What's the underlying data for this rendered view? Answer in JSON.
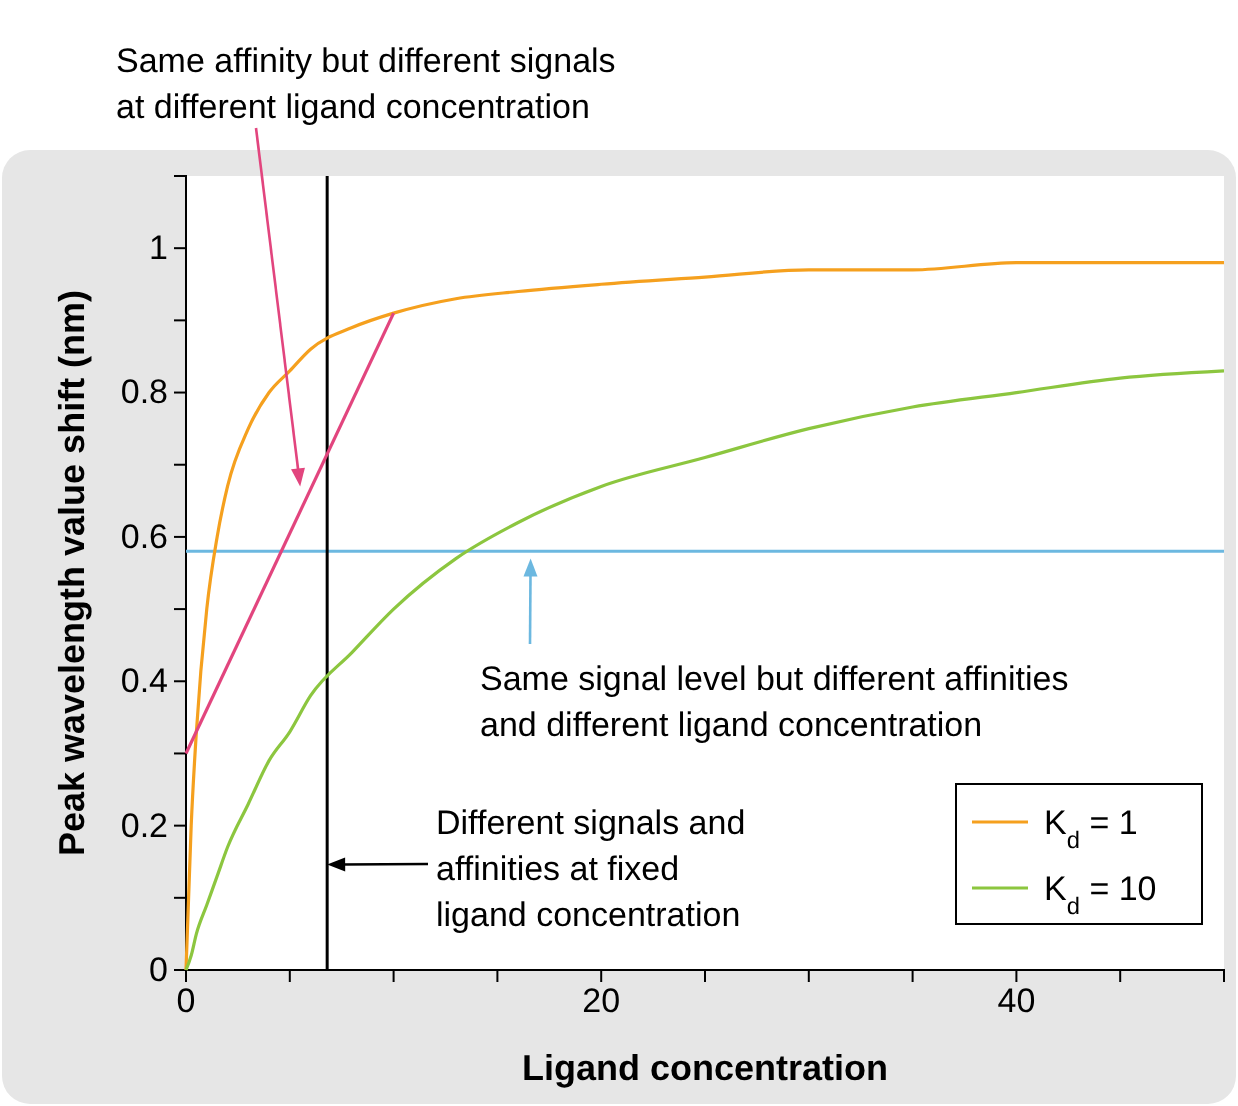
{
  "chart_data": {
    "type": "line",
    "xlabel": "Ligand concentration",
    "ylabel": "Peak wavelength value shift (nm)",
    "x": [
      0,
      0.25,
      0.5,
      1,
      1.5,
      2,
      3,
      4,
      5,
      6,
      8,
      10,
      13,
      16,
      20,
      25,
      30,
      35,
      40,
      45,
      50
    ],
    "series": [
      {
        "name": "K$_{d}$ = 1",
        "color": "#f5a01e",
        "values": [
          0,
          0.2,
          0.33,
          0.5,
          0.6,
          0.67,
          0.75,
          0.8,
          0.83,
          0.86,
          0.89,
          0.91,
          0.93,
          0.94,
          0.95,
          0.96,
          0.97,
          0.97,
          0.98,
          0.98,
          0.98
        ]
      },
      {
        "name": "K$_{d}$ = 10",
        "color": "#8cc63f",
        "values": [
          0,
          0.02,
          0.05,
          0.09,
          0.13,
          0.17,
          0.23,
          0.29,
          0.33,
          0.38,
          0.44,
          0.5,
          0.57,
          0.62,
          0.67,
          0.71,
          0.75,
          0.78,
          0.8,
          0.82,
          0.83
        ]
      },
      {
        "type": "line",
        "color": "#e2457e",
        "x": [
          0,
          10
        ],
        "values": [
          0.3,
          0.91
        ]
      }
    ],
    "xlim": [
      0,
      50
    ],
    "xticks": [
      0,
      {
        "value": 5,
        "label": null
      },
      {
        "value": 10,
        "label": null
      },
      {
        "value": 15,
        "label": null
      },
      20,
      {
        "value": 25,
        "label": null
      },
      {
        "value": 30,
        "label": null
      },
      {
        "value": 35,
        "label": null
      },
      40,
      {
        "value": 45,
        "label": null
      },
      {
        "value": 50,
        "label": null
      }
    ],
    "ylim": [
      0,
      1.1
    ],
    "yticks": [
      0,
      {
        "value": 0.1,
        "label": null
      },
      0.2,
      {
        "value": 0.3,
        "label": null
      },
      0.4,
      {
        "value": 0.5,
        "label": null
      },
      0.6,
      {
        "value": 0.7,
        "label": null
      },
      0.8,
      {
        "value": 0.9,
        "label": null
      },
      1
    ],
    "ref_lines": [
      {
        "axis": "y",
        "value": 0.58,
        "color": "#6cb8e0"
      },
      {
        "axis": "x",
        "value": 6.8,
        "color": "#000000"
      }
    ],
    "annotations": [
      {
        "text": "Same affinity but different signals\nat different ligand concentration",
        "x": 5.5,
        "y": 0.67
      },
      {
        "text": "Same signal level but different affinities\nand different ligand concentration",
        "x": 16.6,
        "y": 0.57
      },
      {
        "text": "Different signals and\naffinities at fixed\nligand concentration",
        "x": 6.8,
        "y": 0.146
      }
    ],
    "legend": "bottom right",
    "grid": false,
    "marker": "none",
    "line_style": "solid"
  }
}
